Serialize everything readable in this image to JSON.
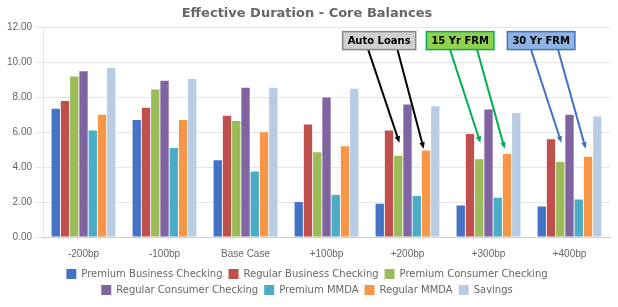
{
  "chart_data": {
    "type": "bar",
    "title": "Effective Duration - Core Balances",
    "categories": [
      "-200bp",
      "-100bp",
      "Base Case",
      "+100bp",
      "+200bp",
      "+300bp",
      "+400bp"
    ],
    "series": [
      {
        "name": "Premium Business Checking",
        "color": "#4472C4",
        "values": [
          7.35,
          6.7,
          4.4,
          2.0,
          1.9,
          1.8,
          1.75
        ]
      },
      {
        "name": "Regular Business Checking",
        "color": "#C0504D",
        "values": [
          7.8,
          7.4,
          6.95,
          6.45,
          6.1,
          5.9,
          5.6
        ]
      },
      {
        "name": "Premium Consumer Checking",
        "color": "#9BBB59",
        "values": [
          9.2,
          8.45,
          6.65,
          4.85,
          4.65,
          4.45,
          4.3
        ]
      },
      {
        "name": "Regular Consumer Checking",
        "color": "#8064A2",
        "values": [
          9.5,
          8.95,
          8.55,
          8.0,
          7.6,
          7.3,
          7.0
        ]
      },
      {
        "name": "Premium MMDA",
        "color": "#4BACC6",
        "values": [
          6.1,
          5.1,
          3.75,
          2.4,
          2.35,
          2.25,
          2.15
        ]
      },
      {
        "name": "Regular MMDA",
        "color": "#F79646",
        "values": [
          7.0,
          6.7,
          6.0,
          5.2,
          4.95,
          4.75,
          4.6
        ]
      },
      {
        "name": "Savings",
        "color": "#B8CCE4",
        "values": [
          9.7,
          9.05,
          8.55,
          8.5,
          7.5,
          7.1,
          6.9
        ]
      }
    ],
    "ylim": [
      0,
      12.0
    ],
    "yticks": [
      {
        "value": 0.0,
        "label": "0.00"
      },
      {
        "value": 2.0,
        "label": "2.00"
      },
      {
        "value": 4.0,
        "label": "4.00"
      },
      {
        "value": 6.0,
        "label": "6.00"
      },
      {
        "value": 8.0,
        "label": "8.00"
      },
      {
        "value": 10.0,
        "label": "10.00"
      },
      {
        "value": 12.0,
        "label": "12.00"
      }
    ],
    "grid": true,
    "legend": "bottom",
    "annotations": [
      "Auto Loans",
      "15 Yr FRM",
      "30 Yr FRM"
    ]
  }
}
